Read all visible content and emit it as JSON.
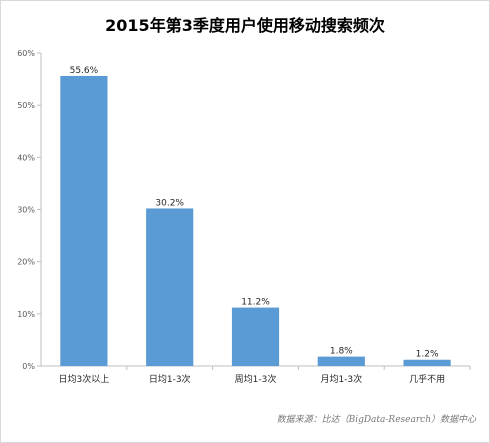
{
  "chart_data": {
    "type": "bar",
    "title": "2015年第3季度用户使用移动搜索频次",
    "categories": [
      "日均3次以上",
      "日均1-3次",
      "周均1-3次",
      "月均1-3次",
      "几乎不用"
    ],
    "values": [
      55.6,
      30.2,
      11.2,
      1.8,
      1.2
    ],
    "data_labels": [
      "55.6%",
      "30.2%",
      "11.2%",
      "1.8%",
      "1.2%"
    ],
    "ylim": [
      0,
      60
    ],
    "yticks": [
      0,
      10,
      20,
      30,
      40,
      50,
      60
    ],
    "ytick_labels": [
      "0%",
      "10%",
      "20%",
      "30%",
      "40%",
      "50%",
      "60%"
    ],
    "grid": false,
    "bar_color": "#5b9bd5",
    "axis_color": "#bfbfbf"
  },
  "source_note": "数据来源：比达（BigData-Research）数据中心"
}
